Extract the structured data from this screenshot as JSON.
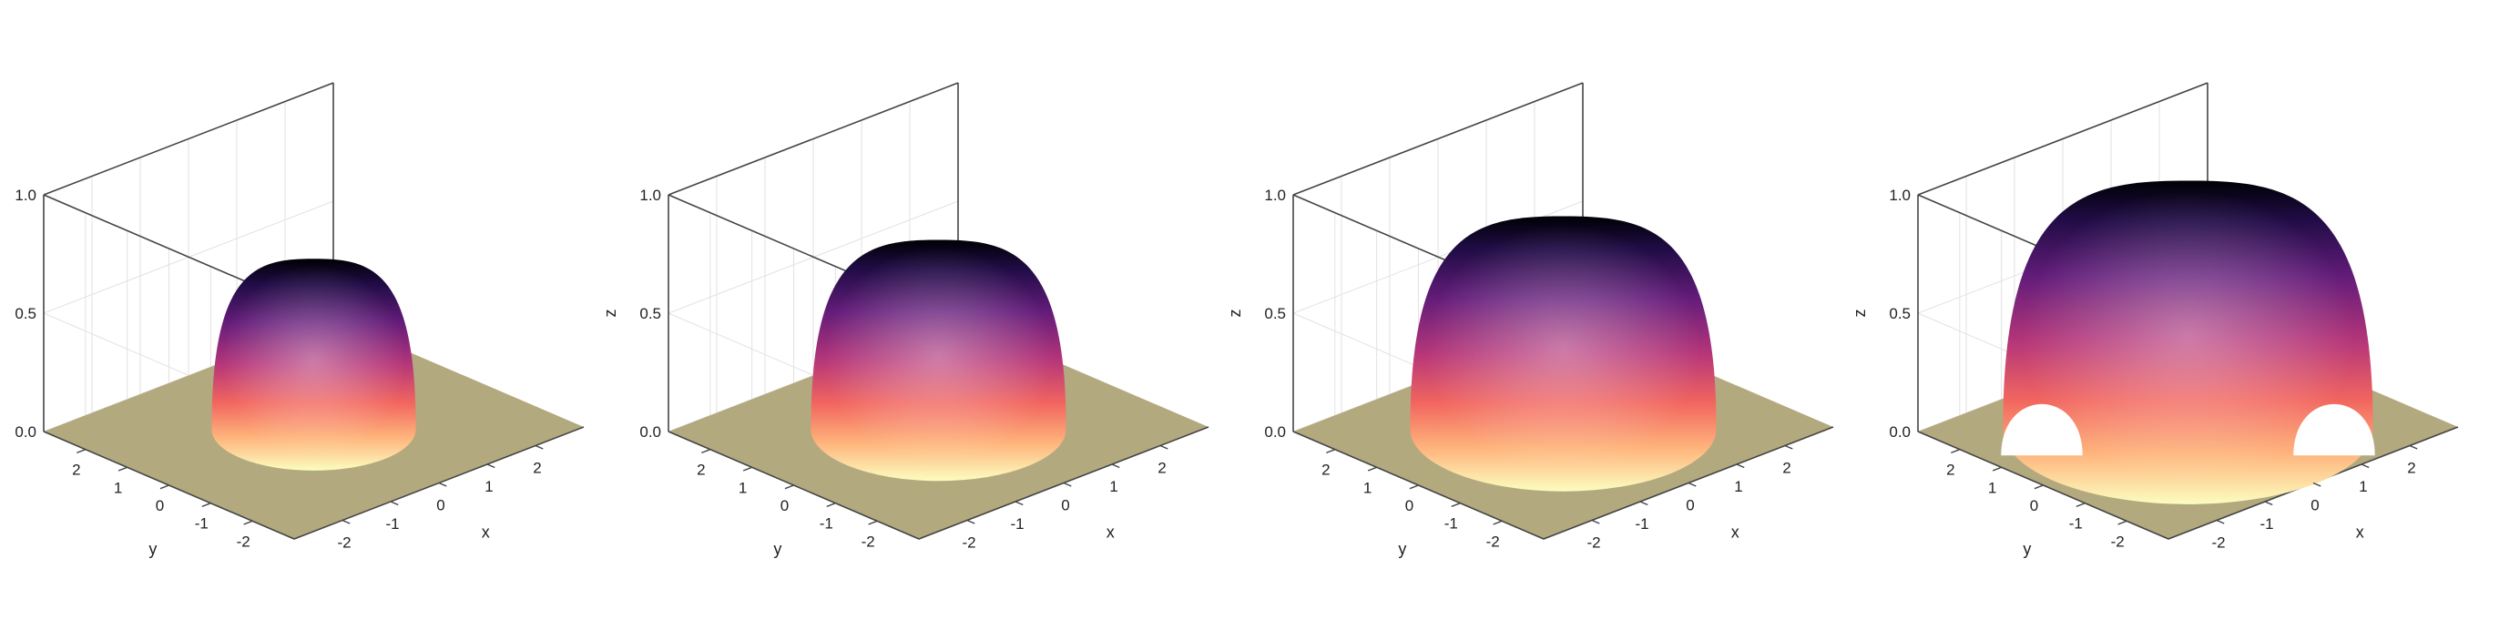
{
  "figure": {
    "colormap": [
      "#fcfdbf",
      "#feb078",
      "#f1605d",
      "#b63679",
      "#721f81",
      "#2c115f",
      "#000004"
    ],
    "floor_color": "#b3a97f",
    "axis_color": "#444444",
    "grid_color": "#e2e2e2",
    "background": "#ffffff"
  },
  "chart_data": [
    {
      "type": "surface",
      "title": "",
      "xlabel": "x",
      "ylabel": "y",
      "zlabel": "",
      "xlim": [
        -3,
        3
      ],
      "ylim": [
        -3,
        3
      ],
      "zlim": [
        0,
        1
      ],
      "xticks": [
        "-2",
        "-1",
        "0",
        "1",
        "2"
      ],
      "yticks": [
        "-2",
        "-1",
        "0",
        "1",
        "2"
      ],
      "zticks": [
        "0.0",
        "0.5",
        "1.0"
      ],
      "grid": true,
      "surface": {
        "shape": "hemisphere",
        "radius": 1.6,
        "peak_z": 0.72
      }
    },
    {
      "type": "surface",
      "title": "",
      "xlabel": "x",
      "ylabel": "y",
      "zlabel": "z",
      "xlim": [
        -3,
        3
      ],
      "ylim": [
        -3,
        3
      ],
      "zlim": [
        0,
        1
      ],
      "xticks": [
        "-2",
        "-1",
        "0",
        "1",
        "2"
      ],
      "yticks": [
        "-2",
        "-1",
        "0",
        "1",
        "2"
      ],
      "zticks": [
        "0.0",
        "0.5",
        "1.0"
      ],
      "grid": true,
      "surface": {
        "shape": "hemisphere",
        "radius": 2.0,
        "peak_z": 0.8
      }
    },
    {
      "type": "surface",
      "title": "",
      "xlabel": "x",
      "ylabel": "y",
      "zlabel": "z",
      "xlim": [
        -3,
        3
      ],
      "ylim": [
        -3,
        3
      ],
      "zlim": [
        0,
        1
      ],
      "xticks": [
        "-2",
        "-1",
        "0",
        "1",
        "2"
      ],
      "yticks": [
        "-2",
        "-1",
        "0",
        "1",
        "2"
      ],
      "zticks": [
        "0.0",
        "0.5",
        "1.0"
      ],
      "grid": true,
      "surface": {
        "shape": "hemisphere",
        "radius": 2.4,
        "peak_z": 0.9
      }
    },
    {
      "type": "surface",
      "title": "",
      "xlabel": "x",
      "ylabel": "y",
      "zlabel": "z",
      "xlim": [
        -3,
        3
      ],
      "ylim": [
        -3,
        3
      ],
      "zlim": [
        0,
        1
      ],
      "xticks": [
        "-2",
        "-1",
        "0",
        "1",
        "2"
      ],
      "yticks": [
        "-2",
        "-1",
        "0",
        "1",
        "2"
      ],
      "zticks": [
        "0.0",
        "0.5",
        "1.0"
      ],
      "grid": true,
      "surface": {
        "shape": "hemisphere",
        "radius": 2.9,
        "peak_z": 1.05,
        "clipped_by_box": true
      }
    }
  ]
}
